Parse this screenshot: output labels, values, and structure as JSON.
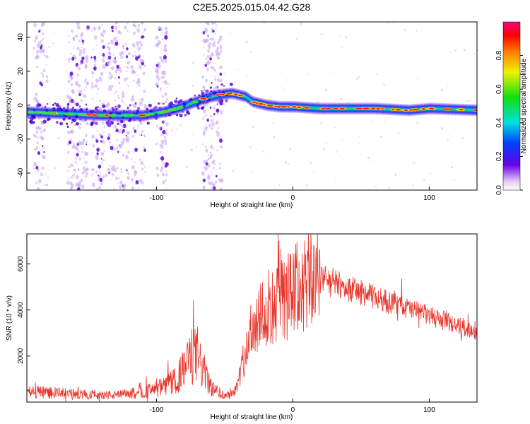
{
  "title": "C2E5.2025.015.04.42.G28",
  "chart_data": [
    {
      "type": "heatmap",
      "xlabel": "Height of straight line (km)",
      "ylabel": "Frequency (Hz)",
      "xlim": [
        -195,
        135
      ],
      "ylim": [
        -50,
        49
      ],
      "xticks": [
        -100,
        0,
        100
      ],
      "yticks": [
        -40,
        -20,
        0,
        20,
        40
      ],
      "ridge": [
        {
          "x": -195,
          "y": -4
        },
        {
          "x": -170,
          "y": -5
        },
        {
          "x": -140,
          "y": -6
        },
        {
          "x": -110,
          "y": -6
        },
        {
          "x": -95,
          "y": -4
        },
        {
          "x": -85,
          "y": -2
        },
        {
          "x": -75,
          "y": 1
        },
        {
          "x": -65,
          "y": 4
        },
        {
          "x": -55,
          "y": 6
        },
        {
          "x": -45,
          "y": 7
        },
        {
          "x": -35,
          "y": 5
        },
        {
          "x": -30,
          "y": 2
        },
        {
          "x": -20,
          "y": 0
        },
        {
          "x": -10,
          "y": -1
        },
        {
          "x": 0,
          "y": -1
        },
        {
          "x": 20,
          "y": -2
        },
        {
          "x": 60,
          "y": -2
        },
        {
          "x": 85,
          "y": -3
        },
        {
          "x": 100,
          "y": -2
        },
        {
          "x": 135,
          "y": -3
        }
      ],
      "colorbar": {
        "label": "Normalized spectral amplitude",
        "range": [
          0,
          1
        ],
        "ticks": [
          0.0,
          0.2,
          0.4,
          0.6,
          0.8
        ],
        "tick_labels": [
          "0.0",
          "0.2",
          "0.4",
          "0.6",
          "0.8"
        ]
      }
    },
    {
      "type": "line",
      "xlabel": "Height of straight line (km)",
      "ylabel": "SNR (10 * v/v)",
      "xlim": [
        -195,
        135
      ],
      "ylim": [
        0,
        7300
      ],
      "xticks": [
        -100,
        0,
        100
      ],
      "yticks": [
        2000,
        4000,
        6000
      ],
      "color": "#e8352b",
      "envelope": [
        {
          "x": -195,
          "y": 400
        },
        {
          "x": -185,
          "y": 420
        },
        {
          "x": -160,
          "y": 320
        },
        {
          "x": -130,
          "y": 280
        },
        {
          "x": -110,
          "y": 400
        },
        {
          "x": -95,
          "y": 600
        },
        {
          "x": -85,
          "y": 900
        },
        {
          "x": -75,
          "y": 1800
        },
        {
          "x": -70,
          "y": 1900
        },
        {
          "x": -65,
          "y": 1200
        },
        {
          "x": -60,
          "y": 600
        },
        {
          "x": -50,
          "y": 250
        },
        {
          "x": -42,
          "y": 500
        },
        {
          "x": -37,
          "y": 1500
        },
        {
          "x": -32,
          "y": 2700
        },
        {
          "x": -25,
          "y": 3700
        },
        {
          "x": -15,
          "y": 4000
        },
        {
          "x": -5,
          "y": 4300
        },
        {
          "x": 5,
          "y": 4800
        },
        {
          "x": 15,
          "y": 5100
        },
        {
          "x": 25,
          "y": 5300
        },
        {
          "x": 35,
          "y": 5000
        },
        {
          "x": 50,
          "y": 4700
        },
        {
          "x": 70,
          "y": 4300
        },
        {
          "x": 90,
          "y": 3900
        },
        {
          "x": 110,
          "y": 3500
        },
        {
          "x": 135,
          "y": 3000
        }
      ]
    }
  ]
}
